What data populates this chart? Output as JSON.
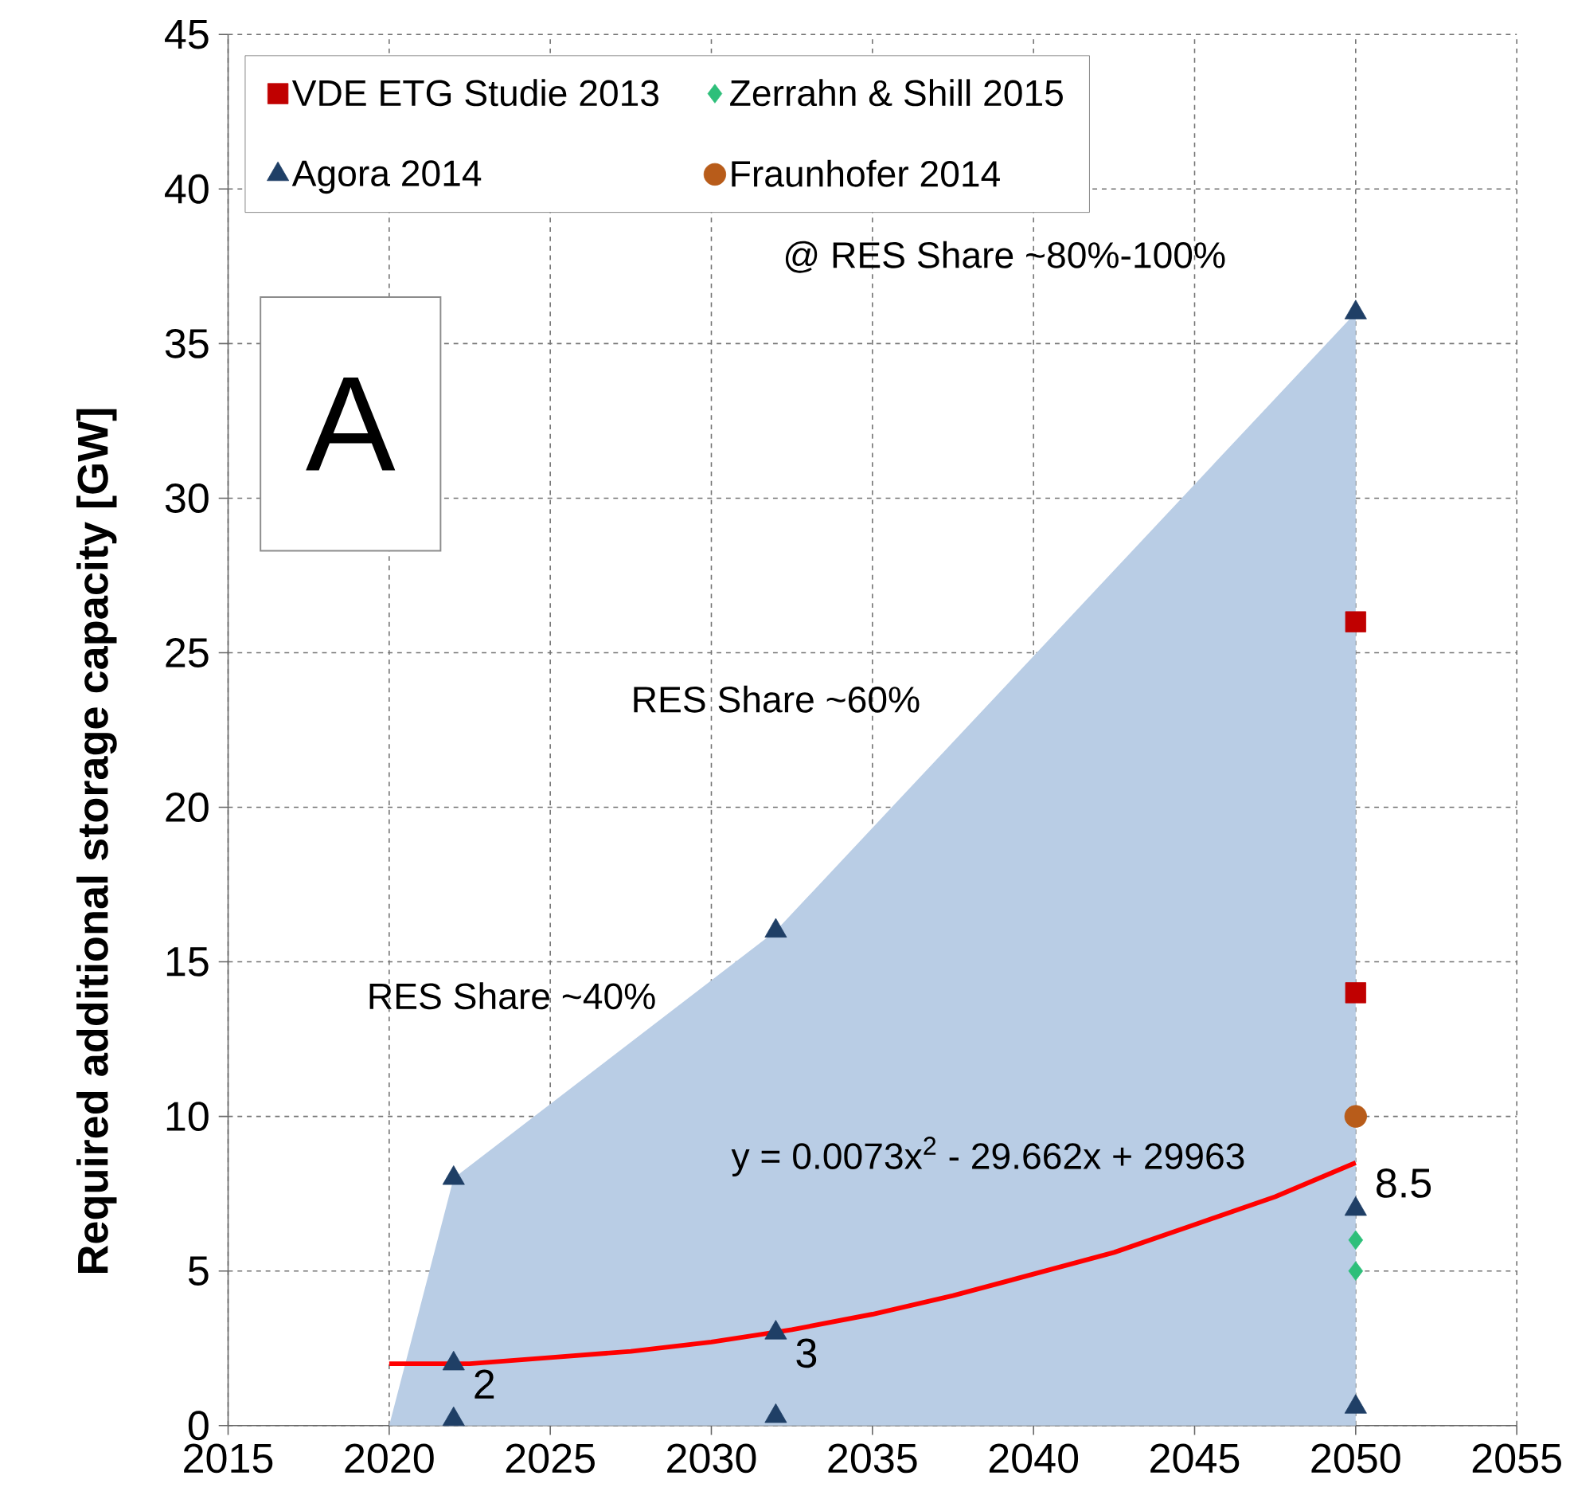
{
  "chart_data": {
    "type": "scatter",
    "ylabel": "Required additional storage capacity [GW]",
    "xlim": [
      2015,
      2055
    ],
    "ylim": [
      0,
      45
    ],
    "xticks": [
      2015,
      2020,
      2025,
      2030,
      2035,
      2040,
      2045,
      2050,
      2055
    ],
    "yticks": [
      0,
      5,
      10,
      15,
      20,
      25,
      30,
      35,
      40,
      45
    ],
    "grid": true,
    "legend": "top left",
    "series": [
      {
        "type": "area",
        "color": "#b9cde5",
        "x": [
          2020,
          2022,
          2032,
          2050
        ],
        "values": [
          0,
          8,
          16,
          36
        ]
      },
      {
        "name": "VDE ETG Studie 2013",
        "marker": "square",
        "color": "#c00000",
        "x": [
          2050,
          2050
        ],
        "values": [
          26,
          14
        ]
      },
      {
        "name": "Zerrahn & Shill 2015",
        "marker": "diamond",
        "color": "#2ebf7a",
        "x": [
          2050,
          2050
        ],
        "values": [
          6,
          5
        ]
      },
      {
        "name": "Agora 2014",
        "marker": "triangle",
        "color": "#1f3f66",
        "x": [
          2022,
          2022,
          2022,
          2032,
          2032,
          2032,
          2050,
          2050,
          2050
        ],
        "values": [
          8,
          2,
          0.2,
          16,
          3,
          0.3,
          36,
          7,
          0.6
        ],
        "value_labels": [
          null,
          "2",
          null,
          null,
          "3",
          null,
          null,
          null,
          null
        ]
      },
      {
        "name": "Fraunhofer 2014",
        "marker": "circle",
        "color": "#b85c1a",
        "x": [
          2050
        ],
        "values": [
          10
        ]
      },
      {
        "type": "line",
        "color": "#ff0000",
        "line_style": "solid",
        "x": [
          2020,
          2022.5,
          2025,
          2027.5,
          2030,
          2032.5,
          2035,
          2037.5,
          2040,
          2042.5,
          2045,
          2047.5,
          2050
        ],
        "values": [
          2.0,
          2.0,
          2.2,
          2.4,
          2.7,
          3.1,
          3.6,
          4.2,
          4.9,
          5.6,
          6.5,
          7.4,
          8.5
        ],
        "value_labels": [
          null,
          null,
          null,
          null,
          null,
          null,
          null,
          null,
          null,
          null,
          null,
          null,
          "8.5"
        ]
      }
    ],
    "annotations": [
      "@ RES Share ~80%-100%",
      "RES Share ~60%",
      "RES Share ~40%",
      "y = 0.0073x$^{2}$ - 29.662x + 29963",
      "A"
    ]
  }
}
